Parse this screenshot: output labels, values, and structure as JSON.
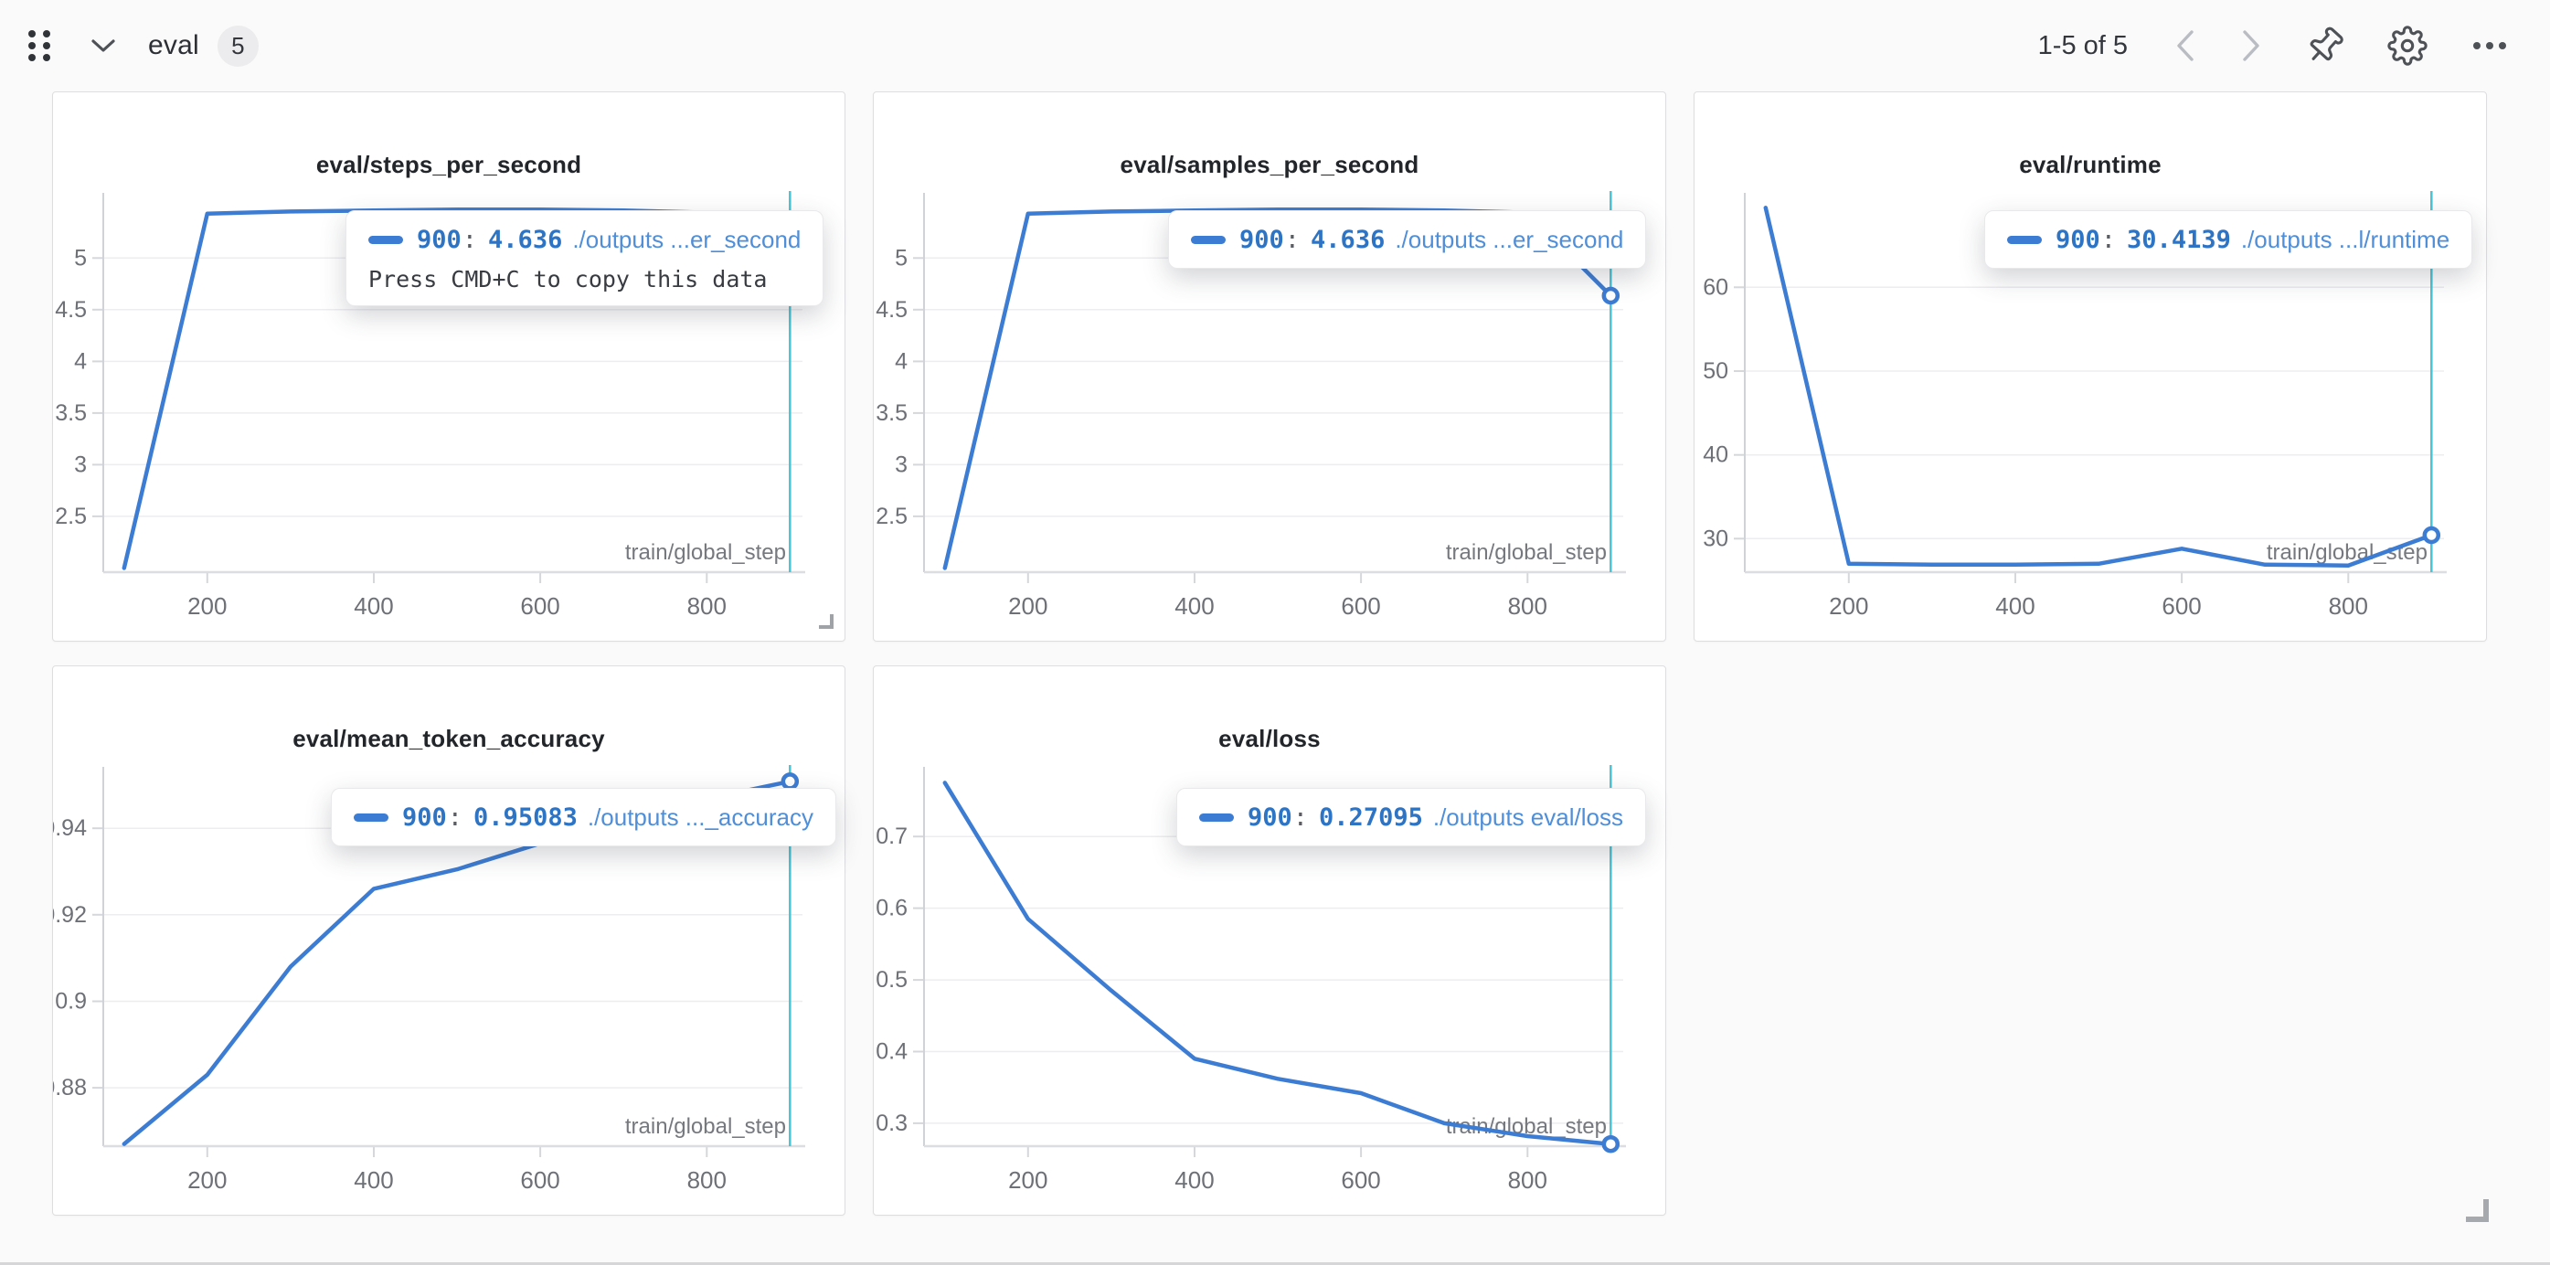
{
  "header": {
    "section_title": "eval",
    "panel_count": "5",
    "pagination": "1-5 of 5"
  },
  "tooltip_separator": ":",
  "colors": {
    "line_blue": "#3d7cd3",
    "crosshair_teal": "#47c4d4",
    "value_blue": "#2e74c4",
    "run_name_blue": "#4f8ed8",
    "page_bg": "#fafafa",
    "panel_bg": "#ffffff"
  },
  "chart_data": [
    {
      "type": "line",
      "title": "eval/steps_per_second",
      "xlabel": "train/global_step",
      "x": [
        100,
        200,
        300,
        400,
        500,
        600,
        700,
        800,
        900
      ],
      "values": [
        2.0,
        5.43,
        5.45,
        5.46,
        5.47,
        5.47,
        5.46,
        5.44,
        4.636
      ],
      "xticks": [
        200,
        400,
        600,
        800
      ],
      "xtick_labels": [
        "200",
        "400",
        "600",
        "800"
      ],
      "yticks": [
        2.5,
        3,
        3.5,
        4,
        4.5,
        5
      ],
      "ytick_labels": [
        "2.5",
        "3",
        "3.5",
        "4",
        "4.5",
        "5"
      ],
      "xlim": [
        75,
        915
      ],
      "ylim": [
        1.96,
        5.56
      ],
      "grid": true,
      "legend_position": "tooltip",
      "tooltip": {
        "step": "900",
        "value": "4.636",
        "run": "./outputs ...er_second",
        "hint": "Press CMD+C to copy this data"
      }
    },
    {
      "type": "line",
      "title": "eval/samples_per_second",
      "xlabel": "train/global_step",
      "x": [
        100,
        200,
        300,
        400,
        500,
        600,
        700,
        800,
        900
      ],
      "values": [
        2.0,
        5.43,
        5.45,
        5.46,
        5.47,
        5.47,
        5.46,
        5.44,
        4.636
      ],
      "xticks": [
        200,
        400,
        600,
        800
      ],
      "xtick_labels": [
        "200",
        "400",
        "600",
        "800"
      ],
      "yticks": [
        2.5,
        3,
        3.5,
        4,
        4.5,
        5
      ],
      "ytick_labels": [
        "2.5",
        "3",
        "3.5",
        "4",
        "4.5",
        "5"
      ],
      "xlim": [
        75,
        915
      ],
      "ylim": [
        1.96,
        5.56
      ],
      "grid": true,
      "legend_position": "tooltip",
      "tooltip": {
        "step": "900",
        "value": "4.636",
        "run": "./outputs ...er_second"
      }
    },
    {
      "type": "line",
      "title": "eval/runtime",
      "xlabel": "train/global_step",
      "x": [
        100,
        200,
        300,
        400,
        500,
        600,
        700,
        800,
        900
      ],
      "values": [
        69.5,
        27.0,
        26.9,
        26.9,
        27.0,
        28.8,
        26.9,
        26.8,
        30.4139
      ],
      "xticks": [
        200,
        400,
        600,
        800
      ],
      "xtick_labels": [
        "200",
        "400",
        "600",
        "800"
      ],
      "yticks": [
        30,
        40,
        50,
        60
      ],
      "ytick_labels": [
        "30",
        "40",
        "50",
        "60"
      ],
      "xlim": [
        75,
        915
      ],
      "ylim": [
        26.0,
        70.4
      ],
      "grid": true,
      "legend_position": "tooltip",
      "tooltip": {
        "step": "900",
        "value": "30.4139",
        "run": "./outputs ...l/runtime"
      }
    },
    {
      "type": "line",
      "title": "eval/mean_token_accuracy",
      "xlabel": "train/global_step",
      "x": [
        100,
        200,
        300,
        400,
        500,
        600,
        700,
        800,
        900
      ],
      "values": [
        0.867,
        0.883,
        0.908,
        0.926,
        0.9305,
        0.9365,
        0.942,
        0.9468,
        0.95083
      ],
      "xticks": [
        200,
        400,
        600,
        800
      ],
      "xtick_labels": [
        "200",
        "400",
        "600",
        "800"
      ],
      "yticks": [
        0.88,
        0.9,
        0.92,
        0.94
      ],
      "ytick_labels": [
        "0.88",
        "0.9",
        "0.92",
        "0.94"
      ],
      "xlim": [
        75,
        915
      ],
      "ylim": [
        0.8665,
        0.9525
      ],
      "grid": true,
      "legend_position": "tooltip",
      "tooltip": {
        "step": "900",
        "value": "0.95083",
        "run": "./outputs ..._accuracy"
      }
    },
    {
      "type": "line",
      "title": "eval/loss",
      "xlabel": "train/global_step",
      "x": [
        100,
        200,
        300,
        400,
        500,
        600,
        700,
        800,
        900
      ],
      "values": [
        0.775,
        0.585,
        0.485,
        0.39,
        0.362,
        0.342,
        0.3,
        0.282,
        0.27095
      ],
      "xticks": [
        200,
        400,
        600,
        800
      ],
      "xtick_labels": [
        "200",
        "400",
        "600",
        "800"
      ],
      "yticks": [
        0.3,
        0.4,
        0.5,
        0.6,
        0.7
      ],
      "ytick_labels": [
        "0.3",
        "0.4",
        "0.5",
        "0.6",
        "0.7"
      ],
      "xlim": [
        75,
        915
      ],
      "ylim": [
        0.268,
        0.787
      ],
      "grid": true,
      "legend_position": "tooltip",
      "tooltip": {
        "step": "900",
        "value": "0.27095",
        "run": "./outputs eval/loss"
      }
    }
  ]
}
